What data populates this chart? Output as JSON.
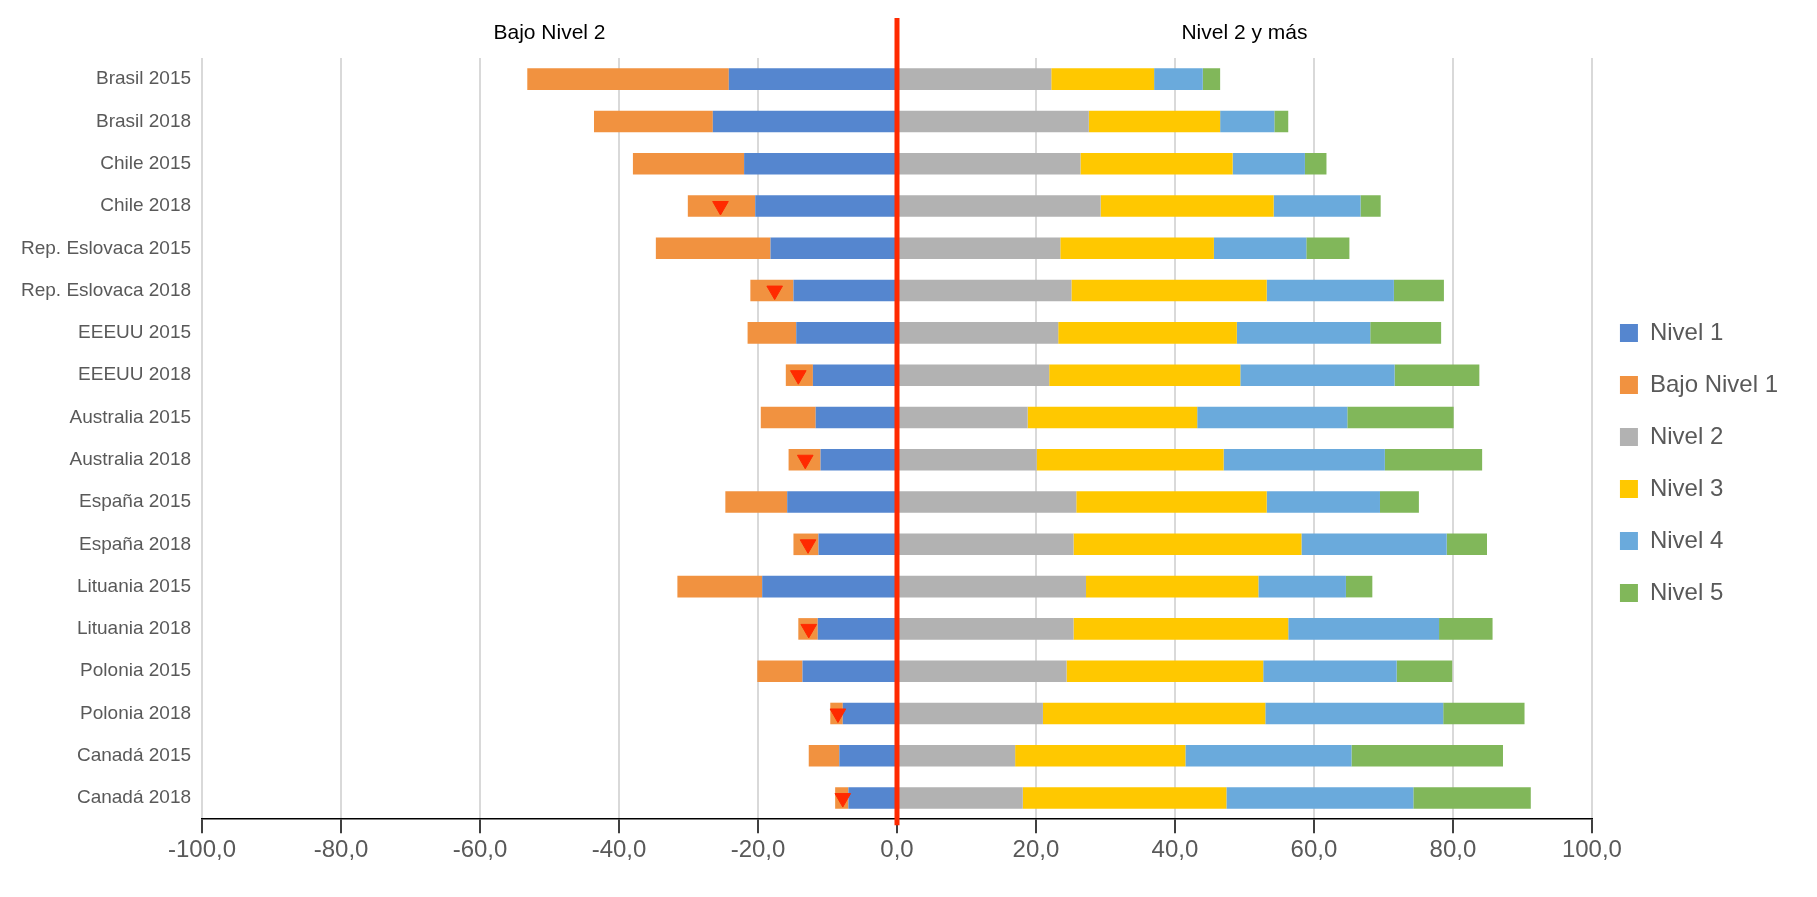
{
  "chart_data": {
    "type": "bar",
    "orientation": "horizontal",
    "stacked": true,
    "categories": [
      "Brasil 2015",
      "Brasil 2018",
      "Chile 2015",
      "Chile 2018",
      "Rep. Eslovaca 2015",
      "Rep. Eslovaca 2018",
      "EEEUU 2015",
      "EEEUU 2018",
      "Australia 2015",
      "Australia 2018",
      "España 2015",
      "España 2018",
      "Lituania 2015",
      "Lituania 2018",
      "Polonia 2015",
      "Polonia 2018",
      "Canadá 2015",
      "Canadá 2018"
    ],
    "series": [
      {
        "name": "Nivel 1",
        "color": "#5586cf",
        "values": [
          -24.2,
          -26.5,
          -22.0,
          -20.4,
          -18.2,
          -14.9,
          -14.5,
          -12.1,
          -11.7,
          -11.0,
          -15.8,
          -11.3,
          -19.4,
          -11.4,
          -13.6,
          -7.8,
          -8.3,
          -7.0
        ]
      },
      {
        "name": "Bajo Nivel 1",
        "color": "#f19240",
        "values": [
          -29.0,
          -17.1,
          -16.0,
          -9.7,
          -16.5,
          -6.2,
          -7.0,
          -3.9,
          -7.9,
          -4.6,
          -8.9,
          -3.6,
          -12.2,
          -2.8,
          -6.5,
          -1.8,
          -4.4,
          -1.9
        ]
      },
      {
        "name": "Nivel 2",
        "color": "#b2b2b2",
        "values": [
          22.2,
          27.6,
          26.4,
          29.3,
          23.5,
          25.1,
          23.2,
          21.9,
          18.8,
          20.1,
          25.8,
          25.4,
          27.2,
          25.4,
          24.4,
          21.0,
          17.0,
          18.1
        ]
      },
      {
        "name": "Nivel 3",
        "color": "#ffc800",
        "values": [
          14.8,
          18.9,
          21.9,
          24.9,
          22.1,
          28.1,
          25.7,
          27.5,
          24.4,
          26.9,
          27.4,
          32.8,
          24.8,
          30.9,
          28.3,
          32.0,
          24.5,
          29.3
        ]
      },
      {
        "name": "Nivel 4",
        "color": "#6aaadc",
        "values": [
          7.0,
          7.8,
          10.4,
          12.5,
          13.3,
          18.3,
          19.2,
          22.2,
          21.6,
          23.2,
          16.3,
          20.9,
          12.6,
          21.7,
          19.2,
          25.6,
          23.9,
          26.9
        ]
      },
      {
        "name": "Nivel 5",
        "color": "#81b75a",
        "values": [
          2.5,
          2.0,
          3.1,
          2.9,
          6.2,
          7.2,
          10.2,
          12.2,
          15.3,
          14.0,
          5.6,
          5.8,
          3.8,
          7.7,
          8.0,
          11.7,
          21.8,
          16.9
        ]
      },
      {
        "type": "scatter",
        "color": "#ff2a00",
        "marker": "triangle",
        "x": [
          "Chile 2018",
          "Rep. Eslovaca 2018",
          "EEEUU 2018",
          "Australia 2018",
          "España 2018",
          "Lituania 2018",
          "Polonia 2018",
          "Canadá 2018"
        ],
        "values": [
          -25.4,
          -17.6,
          -14.2,
          -13.2,
          -12.8,
          -12.7,
          -8.5,
          -7.8
        ]
      }
    ],
    "xlim": [
      -100,
      100
    ],
    "xticks": [
      {
        "value": -100,
        "label": "-100,0"
      },
      {
        "value": -80,
        "label": "-80,0"
      },
      {
        "value": -60,
        "label": "-60,0"
      },
      {
        "value": -40,
        "label": "-40,0"
      },
      {
        "value": -20,
        "label": "-20,0"
      },
      {
        "value": 0,
        "label": "0,0"
      },
      {
        "value": 20,
        "label": "20,0"
      },
      {
        "value": 40,
        "label": "40,0"
      },
      {
        "value": 60,
        "label": "60,0"
      },
      {
        "value": 80,
        "label": "80,0"
      },
      {
        "value": 100,
        "label": "100,0"
      }
    ],
    "ref_lines": [
      {
        "axis": "x",
        "value": 0,
        "color": "#ff2a00"
      }
    ],
    "annotations": [
      "Bajo Nivel 2",
      "Nivel 2 y más"
    ],
    "grid": "x",
    "legend": "right"
  }
}
